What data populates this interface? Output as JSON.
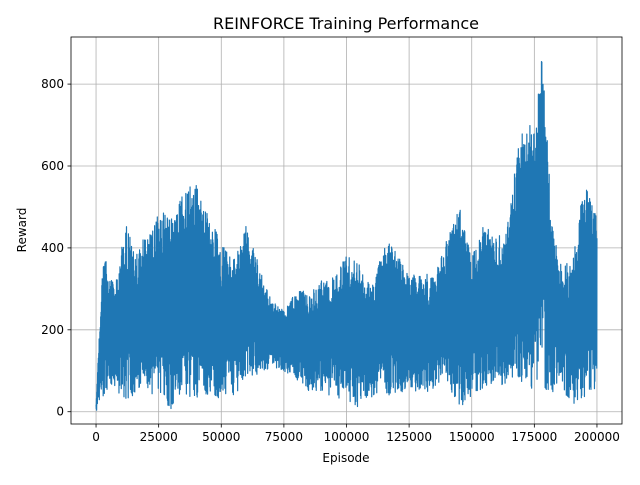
{
  "chart_data": {
    "type": "line",
    "title": "REINFORCE Training Performance",
    "xlabel": "Episode",
    "ylabel": "Reward",
    "xlim": [
      -10000,
      210000
    ],
    "ylim": [
      -30,
      915
    ],
    "xticks": [
      0,
      25000,
      50000,
      75000,
      100000,
      125000,
      150000,
      175000,
      200000
    ],
    "yticks": [
      0,
      200,
      400,
      600,
      800
    ],
    "grid": true,
    "legend": "none",
    "color": "#1f77b4",
    "envelope_x": [
      0,
      1500,
      3000,
      5000,
      8000,
      12000,
      15000,
      20000,
      25000,
      30000,
      35000,
      40000,
      45000,
      50000,
      55000,
      60000,
      65000,
      70000,
      75000,
      80000,
      85000,
      90000,
      95000,
      100000,
      105000,
      110000,
      115000,
      120000,
      125000,
      130000,
      135000,
      140000,
      145000,
      150000,
      155000,
      160000,
      165000,
      168000,
      172000,
      175000,
      178000,
      180000,
      182000,
      185000,
      190000,
      195000,
      198000,
      200000
    ],
    "envelope_upper": [
      20,
      220,
      415,
      330,
      320,
      470,
      390,
      430,
      495,
      470,
      535,
      565,
      480,
      420,
      380,
      460,
      360,
      270,
      250,
      300,
      290,
      320,
      330,
      385,
      360,
      300,
      425,
      395,
      330,
      340,
      330,
      420,
      510,
      375,
      460,
      420,
      470,
      635,
      725,
      690,
      870,
      690,
      470,
      360,
      370,
      565,
      505,
      505
    ],
    "envelope_lower": [
      0,
      5,
      40,
      60,
      50,
      25,
      40,
      45,
      40,
      5,
      30,
      35,
      40,
      30,
      40,
      75,
      90,
      110,
      100,
      80,
      50,
      40,
      30,
      30,
      5,
      30,
      45,
      35,
      40,
      45,
      50,
      75,
      5,
      40,
      60,
      70,
      60,
      70,
      65,
      50,
      70,
      40,
      45,
      70,
      15,
      35,
      55,
      55
    ]
  }
}
